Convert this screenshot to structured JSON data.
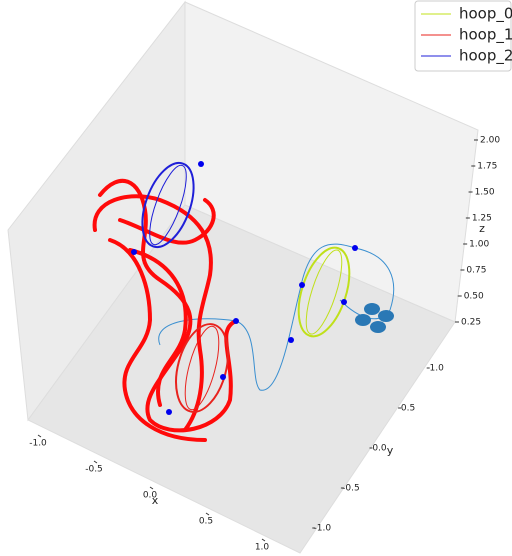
{
  "chart_data": {
    "type": "line3d",
    "series": [
      {
        "name": "hoop_0",
        "color": "#c0e01a"
      },
      {
        "name": "hoop_1",
        "color": "#e8231e"
      },
      {
        "name": "hoop_2",
        "color": "#1f1fd8"
      }
    ],
    "xlabel": "x",
    "ylabel": "y",
    "zlabel": "z",
    "xlim": [
      -1.25,
      1.25
    ],
    "xticks": [
      {
        "value": -1,
        "label": "-1.0"
      },
      {
        "value": -0.5,
        "label": "-0.5"
      },
      {
        "value": 0,
        "label": "0.0"
      },
      0.5,
      {
        "value": 1,
        "label": "1.0"
      }
    ],
    "ylim": [
      -1.25,
      1.25
    ],
    "yticks": [
      {
        "value": -1,
        "label": "-1.0"
      },
      {
        "value": -0.5,
        "label": "-0.5"
      },
      {
        "value": 0,
        "label": "0.0"
      },
      0.5,
      {
        "value": 1,
        "label": "1.0"
      }
    ],
    "zlim": [
      0.25,
      2.0
    ],
    "zticks": [
      {
        "value": 0.25,
        "label": "0.25"
      },
      {
        "value": 0.5,
        "label": "0.50"
      },
      {
        "value": 0.75,
        "label": "0.75"
      },
      {
        "value": 1,
        "label": "1.00"
      },
      {
        "value": 1.25,
        "label": "1.25"
      },
      {
        "value": 1.5,
        "label": "1.50"
      },
      {
        "value": 1.75,
        "label": "1.75"
      },
      {
        "value": 2,
        "label": "2.00"
      }
    ],
    "legend": "upper right"
  }
}
